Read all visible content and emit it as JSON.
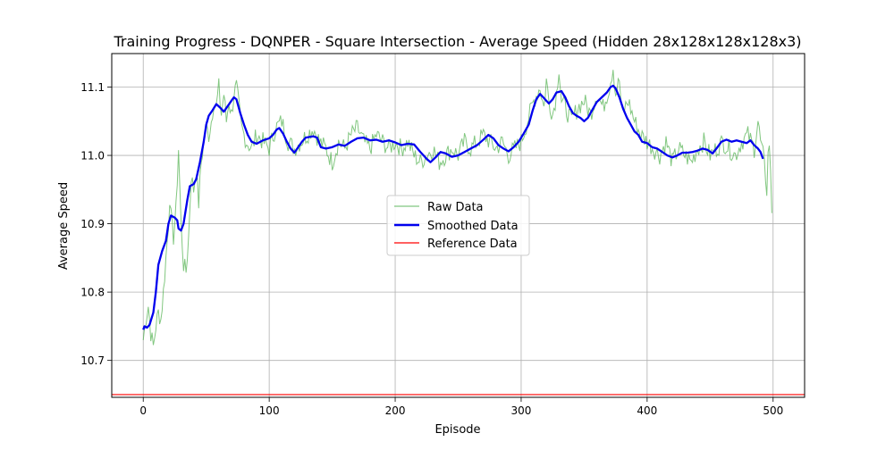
{
  "chart_data": {
    "type": "line",
    "title": "Training Progress - DQNPER - Square Intersection - Average Speed (Hidden 28x128x128x128x3)",
    "xlabel": "Episode",
    "ylabel": "Average Speed",
    "xlim": [
      -25,
      525
    ],
    "ylim": [
      10.646,
      11.149
    ],
    "x_ticks": [
      0,
      100,
      200,
      300,
      400,
      500
    ],
    "y_ticks": [
      10.7,
      10.8,
      10.9,
      11.0,
      11.1
    ],
    "x_tick_labels": [
      "0",
      "100",
      "200",
      "300",
      "400",
      "500"
    ],
    "y_tick_labels": [
      "10.7",
      "10.8",
      "10.9",
      "11.0",
      "11.1"
    ],
    "grid": true,
    "legend_position": "center",
    "colors": {
      "raw": "#4daf4a",
      "smoothed": "#0000ee",
      "reference": "#ff0000"
    },
    "series": [
      {
        "name": "Raw Data",
        "episodes": [
          0,
          499
        ],
        "anchors": [
          [
            0,
            10.73
          ],
          [
            2,
            10.76
          ],
          [
            4,
            10.78
          ],
          [
            6,
            10.74
          ],
          [
            8,
            10.72
          ],
          [
            10,
            10.75
          ],
          [
            12,
            10.77
          ],
          [
            14,
            10.76
          ],
          [
            16,
            10.8
          ],
          [
            18,
            10.85
          ],
          [
            20,
            10.9
          ],
          [
            21,
            10.94
          ],
          [
            22,
            10.91
          ],
          [
            24,
            10.88
          ],
          [
            26,
            10.92
          ],
          [
            28,
            11.01
          ],
          [
            30,
            10.9
          ],
          [
            32,
            10.84
          ],
          [
            34,
            10.83
          ],
          [
            36,
            10.88
          ],
          [
            38,
            10.97
          ],
          [
            40,
            10.95
          ],
          [
            42,
            10.98
          ],
          [
            44,
            10.93
          ],
          [
            46,
            10.99
          ],
          [
            48,
            11.02
          ],
          [
            50,
            11.04
          ],
          [
            52,
            11.03
          ],
          [
            54,
            11.05
          ],
          [
            56,
            11.08
          ],
          [
            58,
            11.07
          ],
          [
            60,
            11.1
          ],
          [
            62,
            11.06
          ],
          [
            64,
            11.09
          ],
          [
            66,
            11.05
          ],
          [
            68,
            11.08
          ],
          [
            70,
            11.06
          ],
          [
            72,
            11.09
          ],
          [
            74,
            11.1
          ],
          [
            76,
            11.07
          ],
          [
            78,
            11.04
          ],
          [
            80,
            11.03
          ],
          [
            82,
            11.02
          ],
          [
            86,
            11.01
          ],
          [
            90,
            11.03
          ],
          [
            95,
            11.02
          ],
          [
            100,
            11.01
          ],
          [
            105,
            11.04
          ],
          [
            110,
            11.05
          ],
          [
            115,
            11.02
          ],
          [
            120,
            11.01
          ],
          [
            125,
            11.02
          ],
          [
            130,
            11.03
          ],
          [
            135,
            11.04
          ],
          [
            140,
            11.02
          ],
          [
            145,
            11.01
          ],
          [
            150,
            10.99
          ],
          [
            155,
            11.02
          ],
          [
            160,
            11.01
          ],
          [
            165,
            11.03
          ],
          [
            170,
            11.04
          ],
          [
            175,
            11.02
          ],
          [
            180,
            11.01
          ],
          [
            185,
            11.03
          ],
          [
            190,
            11.02
          ],
          [
            195,
            11.01
          ],
          [
            200,
            11.02
          ],
          [
            205,
            11.01
          ],
          [
            210,
            11.02
          ],
          [
            215,
            11.0
          ],
          [
            220,
            10.99
          ],
          [
            225,
            11.0
          ],
          [
            230,
            11.01
          ],
          [
            235,
            10.99
          ],
          [
            240,
            11.0
          ],
          [
            245,
            11.01
          ],
          [
            250,
            11.0
          ],
          [
            255,
            11.02
          ],
          [
            260,
            11.01
          ],
          [
            265,
            11.02
          ],
          [
            270,
            11.03
          ],
          [
            275,
            11.02
          ],
          [
            280,
            11.01
          ],
          [
            285,
            11.02
          ],
          [
            290,
            11.0
          ],
          [
            295,
            11.01
          ],
          [
            300,
            11.02
          ],
          [
            305,
            11.05
          ],
          [
            310,
            11.08
          ],
          [
            315,
            11.1
          ],
          [
            318,
            11.07
          ],
          [
            320,
            11.11
          ],
          [
            322,
            11.08
          ],
          [
            325,
            11.06
          ],
          [
            328,
            11.09
          ],
          [
            330,
            11.13
          ],
          [
            332,
            11.08
          ],
          [
            335,
            11.07
          ],
          [
            340,
            11.05
          ],
          [
            345,
            11.07
          ],
          [
            350,
            11.08
          ],
          [
            355,
            11.06
          ],
          [
            360,
            11.09
          ],
          [
            365,
            11.07
          ],
          [
            370,
            11.1
          ],
          [
            373,
            11.13
          ],
          [
            375,
            11.09
          ],
          [
            378,
            11.11
          ],
          [
            380,
            11.06
          ],
          [
            385,
            11.08
          ],
          [
            390,
            11.05
          ],
          [
            395,
            11.03
          ],
          [
            400,
            11.02
          ],
          [
            405,
            11.01
          ],
          [
            410,
            11.0
          ],
          [
            415,
            11.02
          ],
          [
            420,
            10.99
          ],
          [
            425,
            11.01
          ],
          [
            430,
            11.0
          ],
          [
            435,
            10.99
          ],
          [
            440,
            11.01
          ],
          [
            445,
            11.02
          ],
          [
            450,
            11.0
          ],
          [
            455,
            11.01
          ],
          [
            460,
            11.02
          ],
          [
            465,
            11.01
          ],
          [
            470,
            11.0
          ],
          [
            475,
            11.02
          ],
          [
            480,
            11.03
          ],
          [
            485,
            11.01
          ],
          [
            488,
            11.05
          ],
          [
            490,
            11.02
          ],
          [
            492,
            11.0
          ],
          [
            494,
            10.97
          ],
          [
            495,
            10.95
          ],
          [
            496,
            11.0
          ],
          [
            497,
            11.02
          ],
          [
            499,
            10.92
          ]
        ]
      },
      {
        "name": "Smoothed Data",
        "anchors": [
          [
            0,
            10.745
          ],
          [
            1,
            10.75
          ],
          [
            3,
            10.748
          ],
          [
            5,
            10.752
          ],
          [
            8,
            10.77
          ],
          [
            10,
            10.8
          ],
          [
            12,
            10.84
          ],
          [
            15,
            10.86
          ],
          [
            18,
            10.875
          ],
          [
            20,
            10.9
          ],
          [
            22,
            10.912
          ],
          [
            25,
            10.909
          ],
          [
            27,
            10.905
          ],
          [
            28,
            10.893
          ],
          [
            30,
            10.89
          ],
          [
            32,
            10.9
          ],
          [
            35,
            10.935
          ],
          [
            37,
            10.955
          ],
          [
            40,
            10.958
          ],
          [
            42,
            10.965
          ],
          [
            45,
            10.99
          ],
          [
            48,
            11.02
          ],
          [
            50,
            11.045
          ],
          [
            52,
            11.058
          ],
          [
            55,
            11.066
          ],
          [
            58,
            11.075
          ],
          [
            61,
            11.07
          ],
          [
            64,
            11.064
          ],
          [
            67,
            11.072
          ],
          [
            70,
            11.08
          ],
          [
            72,
            11.085
          ],
          [
            74,
            11.082
          ],
          [
            77,
            11.062
          ],
          [
            80,
            11.045
          ],
          [
            83,
            11.03
          ],
          [
            86,
            11.02
          ],
          [
            90,
            11.017
          ],
          [
            95,
            11.022
          ],
          [
            100,
            11.025
          ],
          [
            103,
            11.03
          ],
          [
            106,
            11.038
          ],
          [
            108,
            11.04
          ],
          [
            111,
            11.032
          ],
          [
            114,
            11.02
          ],
          [
            117,
            11.01
          ],
          [
            120,
            11.004
          ],
          [
            123,
            11.012
          ],
          [
            126,
            11.02
          ],
          [
            129,
            11.026
          ],
          [
            132,
            11.027
          ],
          [
            135,
            11.028
          ],
          [
            138,
            11.026
          ],
          [
            141,
            11.012
          ],
          [
            145,
            11.01
          ],
          [
            150,
            11.012
          ],
          [
            155,
            11.016
          ],
          [
            160,
            11.014
          ],
          [
            165,
            11.02
          ],
          [
            170,
            11.025
          ],
          [
            175,
            11.026
          ],
          [
            180,
            11.022
          ],
          [
            185,
            11.023
          ],
          [
            190,
            11.02
          ],
          [
            195,
            11.022
          ],
          [
            200,
            11.019
          ],
          [
            205,
            11.015
          ],
          [
            210,
            11.017
          ],
          [
            215,
            11.016
          ],
          [
            220,
            11.005
          ],
          [
            225,
            10.995
          ],
          [
            228,
            10.99
          ],
          [
            232,
            10.997
          ],
          [
            236,
            11.005
          ],
          [
            240,
            11.003
          ],
          [
            245,
            10.998
          ],
          [
            250,
            11.0
          ],
          [
            255,
            11.005
          ],
          [
            260,
            11.01
          ],
          [
            265,
            11.015
          ],
          [
            270,
            11.023
          ],
          [
            274,
            11.03
          ],
          [
            278,
            11.025
          ],
          [
            282,
            11.015
          ],
          [
            286,
            11.01
          ],
          [
            290,
            11.006
          ],
          [
            294,
            11.012
          ],
          [
            298,
            11.02
          ],
          [
            302,
            11.032
          ],
          [
            306,
            11.045
          ],
          [
            309,
            11.065
          ],
          [
            312,
            11.082
          ],
          [
            315,
            11.09
          ],
          [
            318,
            11.084
          ],
          [
            322,
            11.076
          ],
          [
            325,
            11.082
          ],
          [
            328,
            11.092
          ],
          [
            332,
            11.094
          ],
          [
            335,
            11.085
          ],
          [
            338,
            11.072
          ],
          [
            341,
            11.062
          ],
          [
            344,
            11.058
          ],
          [
            347,
            11.055
          ],
          [
            350,
            11.05
          ],
          [
            353,
            11.055
          ],
          [
            356,
            11.065
          ],
          [
            360,
            11.078
          ],
          [
            364,
            11.085
          ],
          [
            368,
            11.092
          ],
          [
            371,
            11.1
          ],
          [
            373,
            11.102
          ],
          [
            375,
            11.098
          ],
          [
            378,
            11.085
          ],
          [
            381,
            11.068
          ],
          [
            384,
            11.055
          ],
          [
            387,
            11.045
          ],
          [
            390,
            11.035
          ],
          [
            393,
            11.03
          ],
          [
            396,
            11.02
          ],
          [
            400,
            11.018
          ],
          [
            404,
            11.012
          ],
          [
            408,
            11.01
          ],
          [
            412,
            11.005
          ],
          [
            416,
            11.0
          ],
          [
            420,
            10.997
          ],
          [
            424,
            11.0
          ],
          [
            428,
            11.004
          ],
          [
            432,
            11.004
          ],
          [
            436,
            11.005
          ],
          [
            440,
            11.007
          ],
          [
            444,
            11.01
          ],
          [
            448,
            11.008
          ],
          [
            452,
            11.003
          ],
          [
            455,
            11.01
          ],
          [
            459,
            11.02
          ],
          [
            463,
            11.023
          ],
          [
            467,
            11.02
          ],
          [
            471,
            11.022
          ],
          [
            475,
            11.02
          ],
          [
            479,
            11.018
          ],
          [
            482,
            11.022
          ],
          [
            485,
            11.015
          ],
          [
            488,
            11.01
          ],
          [
            490,
            11.005
          ],
          [
            492,
            10.995
          ]
        ]
      },
      {
        "name": "Reference Data",
        "value": 10.65
      }
    ]
  }
}
